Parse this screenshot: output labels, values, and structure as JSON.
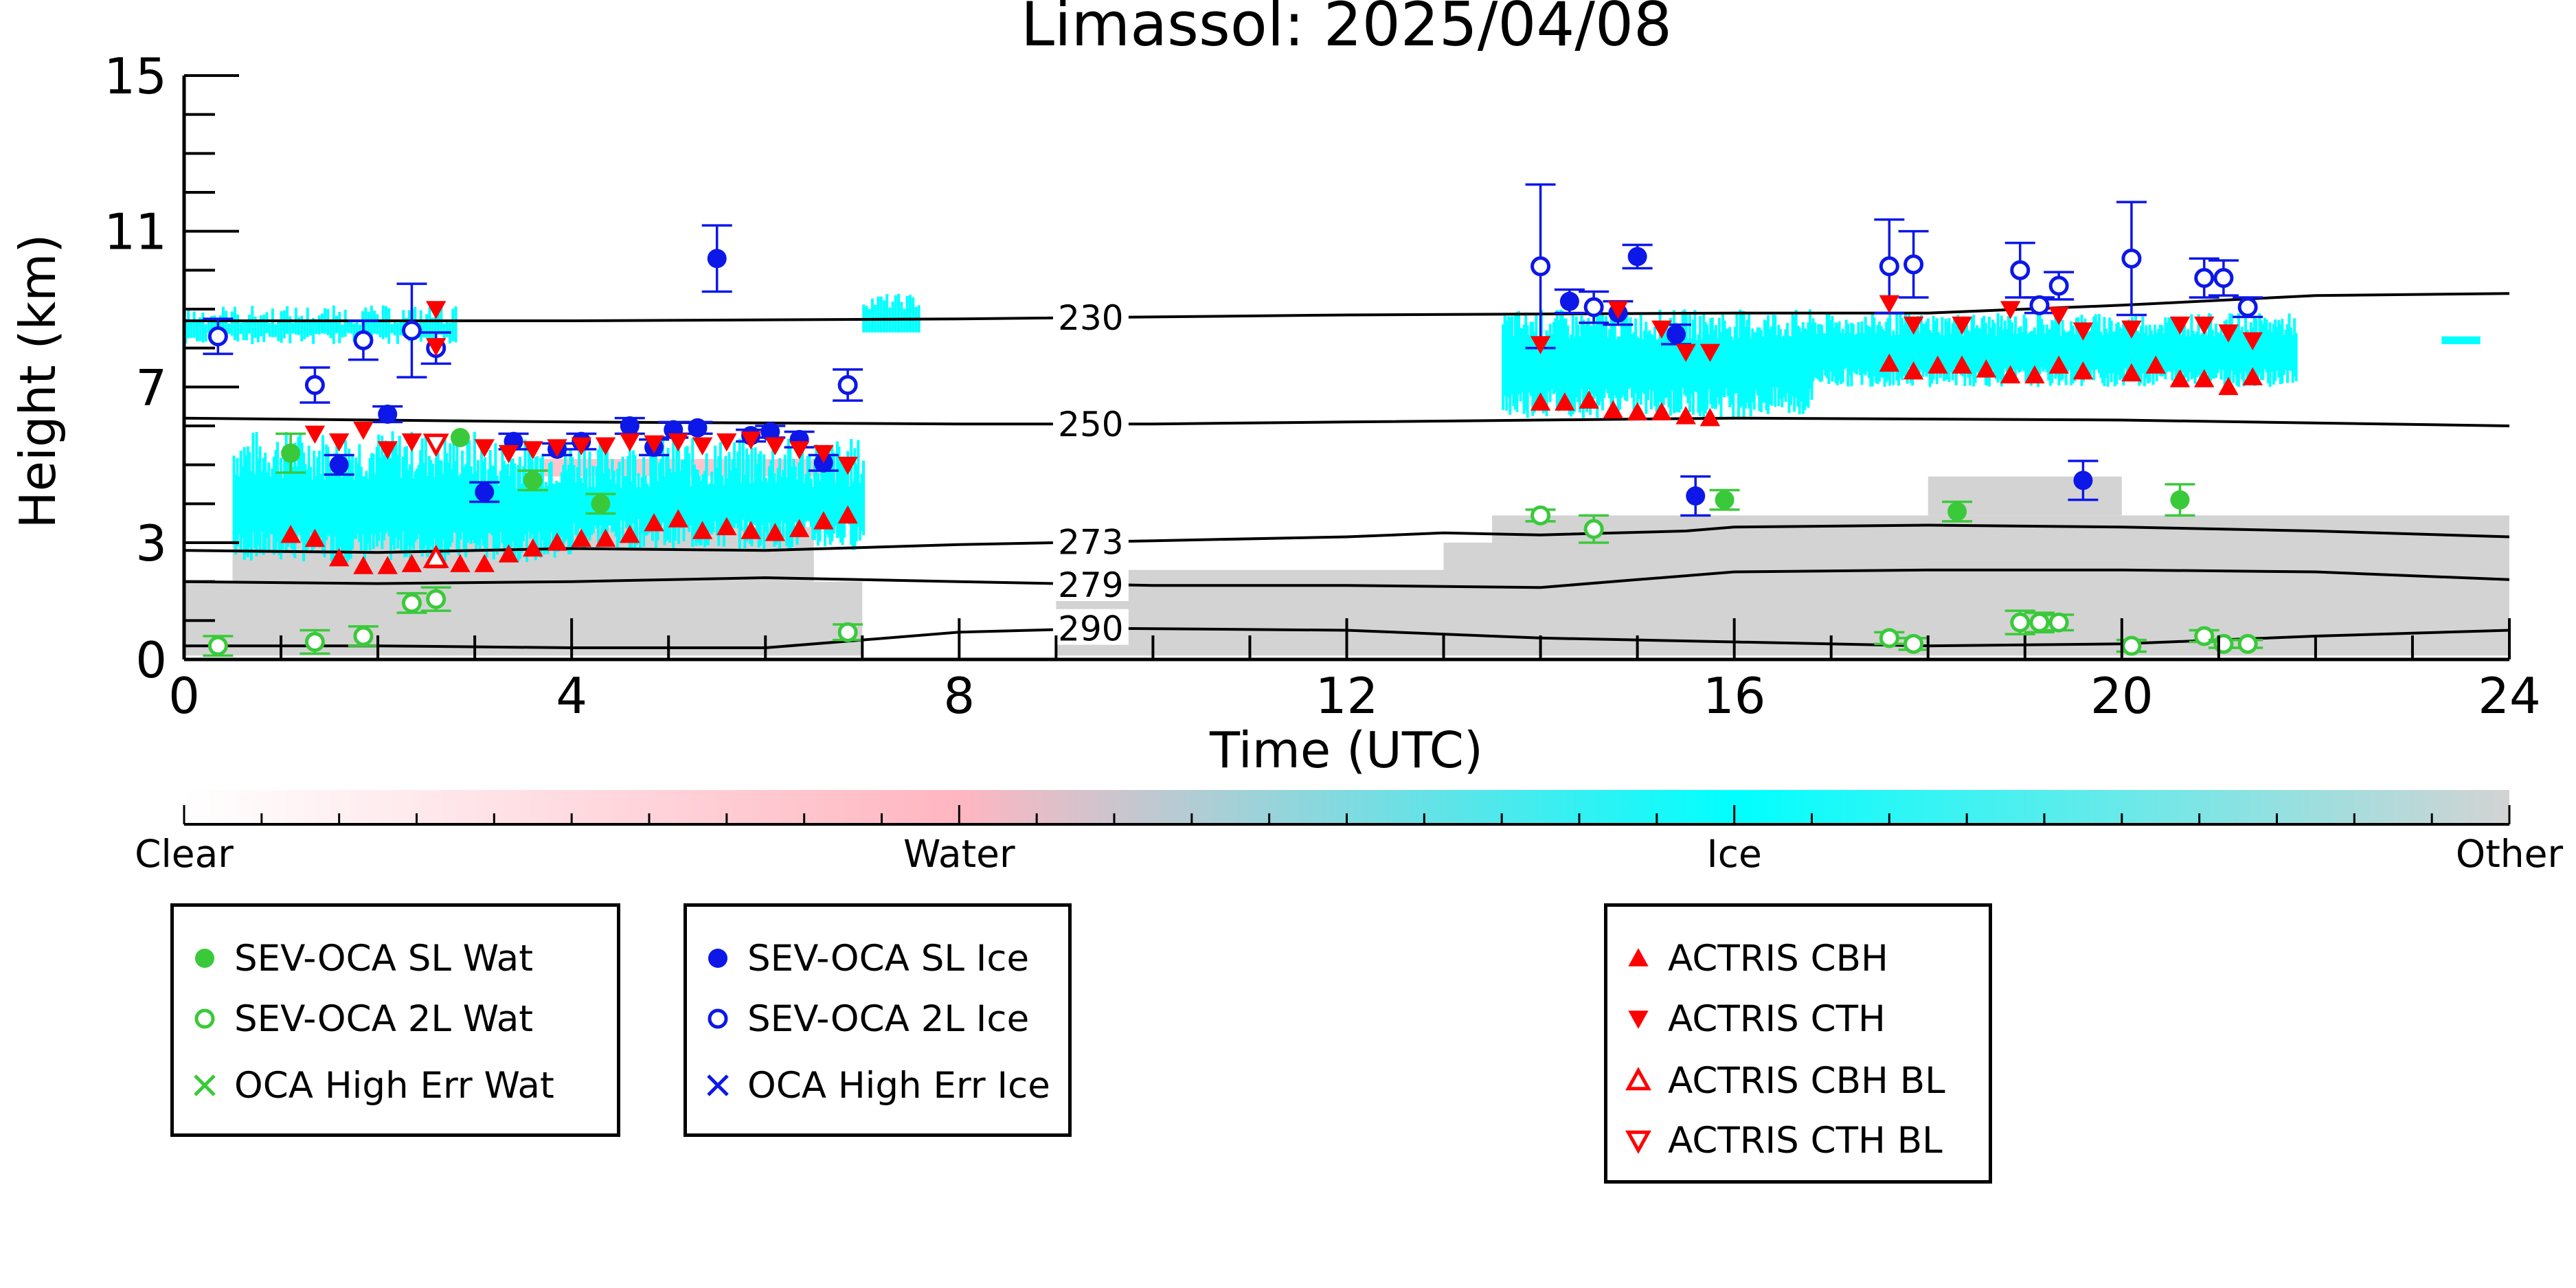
{
  "chart_data": {
    "type": "scatter",
    "title": "Limassol: 2025/04/08",
    "xlabel": "Time (UTC)",
    "ylabel": "Height (km)",
    "xlim": [
      0,
      24
    ],
    "ylim": [
      0,
      15
    ],
    "x_ticks": [
      "0",
      "4",
      "8",
      "12",
      "16",
      "20",
      "24"
    ],
    "y_ticks": [
      "0",
      "3",
      "7",
      "11",
      "15"
    ],
    "colorbar": {
      "labels": [
        "Clear",
        "Water",
        "Ice",
        "Other"
      ],
      "colors": [
        "#ffffff",
        "#ffb6c1",
        "#00ffff",
        "#d3d3d3"
      ]
    },
    "temperature_contours": [
      {
        "label": "230",
        "points": [
          [
            0,
            8.7
          ],
          [
            4,
            8.7
          ],
          [
            8,
            8.75
          ],
          [
            12,
            8.85
          ],
          [
            16,
            8.9
          ],
          [
            18,
            8.9
          ],
          [
            20,
            9.1
          ],
          [
            22,
            9.35
          ],
          [
            24,
            9.4
          ]
        ]
      },
      {
        "label": "250",
        "points": [
          [
            0,
            6.2
          ],
          [
            4,
            6.1
          ],
          [
            8,
            6.05
          ],
          [
            10,
            6.05
          ],
          [
            12,
            6.1
          ],
          [
            16,
            6.2
          ],
          [
            20,
            6.15
          ],
          [
            24,
            6.0
          ]
        ]
      },
      {
        "label": "273",
        "points": [
          [
            0,
            2.8
          ],
          [
            2,
            2.75
          ],
          [
            4,
            2.85
          ],
          [
            6,
            2.8
          ],
          [
            8,
            2.95
          ],
          [
            10,
            3.05
          ],
          [
            12,
            3.15
          ],
          [
            13,
            3.25
          ],
          [
            14,
            3.2
          ],
          [
            15.5,
            3.3
          ],
          [
            16,
            3.4
          ],
          [
            18,
            3.45
          ],
          [
            20,
            3.4
          ],
          [
            22,
            3.3
          ],
          [
            24,
            3.15
          ]
        ]
      },
      {
        "label": "279",
        "points": [
          [
            0,
            2.0
          ],
          [
            2,
            1.95
          ],
          [
            4,
            2.0
          ],
          [
            6,
            2.1
          ],
          [
            8,
            2.0
          ],
          [
            10,
            1.9
          ],
          [
            12,
            1.9
          ],
          [
            14,
            1.85
          ],
          [
            15,
            2.05
          ],
          [
            16,
            2.25
          ],
          [
            18,
            2.3
          ],
          [
            20,
            2.3
          ],
          [
            22,
            2.25
          ],
          [
            24,
            2.05
          ]
        ]
      },
      {
        "label": "290",
        "points": [
          [
            0,
            0.35
          ],
          [
            2,
            0.35
          ],
          [
            4,
            0.3
          ],
          [
            6,
            0.3
          ],
          [
            8,
            0.7
          ],
          [
            9.5,
            0.8
          ],
          [
            12,
            0.75
          ],
          [
            14,
            0.55
          ],
          [
            16,
            0.45
          ],
          [
            18,
            0.35
          ],
          [
            20,
            0.4
          ],
          [
            22,
            0.6
          ],
          [
            24,
            0.75
          ]
        ]
      }
    ],
    "series": [
      {
        "name": "SEV-OCA SL Wat",
        "color": "#3ac93a",
        "marker": "filled-circle",
        "points": [
          [
            1.1,
            5.3,
            0.5
          ],
          [
            2.85,
            5.7,
            0
          ],
          [
            3.6,
            4.6,
            0.25
          ],
          [
            4.3,
            4.0,
            0.25
          ],
          [
            15.9,
            4.1,
            0.25
          ],
          [
            18.3,
            3.8,
            0.25
          ],
          [
            20.6,
            4.1,
            0.4
          ]
        ]
      },
      {
        "name": "SEV-OCA 2L Wat",
        "color": "#3ac93a",
        "marker": "open-circle",
        "points": [
          [
            0.35,
            0.35,
            0.25
          ],
          [
            1.35,
            0.45,
            0.3
          ],
          [
            1.85,
            0.6,
            0.25
          ],
          [
            2.35,
            1.45,
            0.25
          ],
          [
            2.6,
            1.55,
            0.3
          ],
          [
            6.85,
            0.7,
            0.2
          ],
          [
            14.0,
            3.7,
            0.15
          ],
          [
            14.55,
            3.35,
            0.35
          ],
          [
            17.6,
            0.55,
            0.15
          ],
          [
            17.85,
            0.4,
            0.15
          ],
          [
            18.95,
            0.95,
            0.3
          ],
          [
            19.15,
            0.95,
            0.25
          ],
          [
            19.35,
            0.95,
            0.2
          ],
          [
            20.1,
            0.35,
            0.15
          ],
          [
            20.85,
            0.6,
            0.15
          ],
          [
            21.05,
            0.4,
            0.1
          ],
          [
            21.3,
            0.4,
            0.1
          ]
        ]
      },
      {
        "name": "OCA High Err Wat",
        "color": "#3ac93a",
        "marker": "x",
        "points": []
      },
      {
        "name": "SEV-OCA SL Ice",
        "color": "#0c17e8",
        "marker": "filled-circle",
        "points": [
          [
            1.6,
            5.0,
            0.25
          ],
          [
            2.1,
            6.3,
            0.2
          ],
          [
            3.1,
            4.3,
            0.25
          ],
          [
            3.4,
            5.6,
            0.2
          ],
          [
            3.85,
            5.4,
            0.15
          ],
          [
            4.1,
            5.6,
            0.2
          ],
          [
            4.6,
            6.0,
            0.2
          ],
          [
            4.85,
            5.45,
            0.2
          ],
          [
            5.05,
            5.9,
            0.2
          ],
          [
            5.3,
            5.95,
            0.15
          ],
          [
            5.5,
            10.3,
            0.85
          ],
          [
            5.85,
            5.75,
            0.15
          ],
          [
            6.05,
            5.85,
            0.15
          ],
          [
            6.35,
            5.65,
            0.2
          ],
          [
            6.6,
            5.05,
            0.2
          ],
          [
            14.3,
            9.2,
            0.3
          ],
          [
            14.8,
            8.9,
            0.3
          ],
          [
            15.0,
            10.35,
            0.3
          ],
          [
            15.4,
            8.35,
            0.25
          ],
          [
            15.6,
            4.2,
            0.5
          ],
          [
            19.6,
            4.6,
            0.5
          ]
        ]
      },
      {
        "name": "SEV-OCA 2L Ice",
        "color": "#0c17e8",
        "marker": "open-circle",
        "points": [
          [
            0.35,
            8.3,
            0.45
          ],
          [
            1.35,
            7.05,
            0.45
          ],
          [
            1.85,
            8.2,
            0.5
          ],
          [
            2.35,
            8.45,
            1.2
          ],
          [
            2.6,
            8.0,
            0.4
          ],
          [
            6.85,
            7.05,
            0.4
          ],
          [
            14.0,
            10.1,
            2.1
          ],
          [
            14.55,
            9.05,
            0.4
          ],
          [
            17.6,
            10.1,
            1.2
          ],
          [
            17.85,
            10.15,
            0.85
          ],
          [
            18.95,
            10.0,
            0.7
          ],
          [
            19.15,
            9.1,
            0.2
          ],
          [
            19.35,
            9.6,
            0.35
          ],
          [
            20.1,
            10.3,
            1.45
          ],
          [
            20.85,
            9.8,
            0.5
          ],
          [
            21.05,
            9.8,
            0.45
          ],
          [
            21.3,
            9.05,
            0.25
          ]
        ]
      },
      {
        "name": "OCA High Err Ice",
        "color": "#0c17e8",
        "marker": "x",
        "points": []
      },
      {
        "name": "ACTRIS CBH",
        "color": "#ff0000",
        "marker": "triangle-up",
        "points": [
          [
            1.1,
            3.2
          ],
          [
            1.35,
            3.1
          ],
          [
            1.6,
            2.6
          ],
          [
            1.85,
            2.4
          ],
          [
            2.1,
            2.4
          ],
          [
            2.35,
            2.45
          ],
          [
            2.6,
            2.55
          ],
          [
            2.85,
            2.45
          ],
          [
            3.1,
            2.45
          ],
          [
            3.35,
            2.7
          ],
          [
            3.6,
            2.85
          ],
          [
            3.85,
            3.0
          ],
          [
            4.1,
            3.1
          ],
          [
            4.35,
            3.1
          ],
          [
            4.6,
            3.2
          ],
          [
            4.85,
            3.5
          ],
          [
            5.1,
            3.6
          ],
          [
            5.35,
            3.3
          ],
          [
            5.6,
            3.4
          ],
          [
            5.85,
            3.3
          ],
          [
            6.1,
            3.25
          ],
          [
            6.35,
            3.35
          ],
          [
            6.6,
            3.55
          ],
          [
            6.85,
            3.7
          ],
          [
            14.0,
            6.6
          ],
          [
            14.25,
            6.6
          ],
          [
            14.5,
            6.65
          ],
          [
            14.75,
            6.4
          ],
          [
            15.0,
            6.35
          ],
          [
            15.25,
            6.35
          ],
          [
            15.5,
            6.25
          ],
          [
            15.75,
            6.2
          ],
          [
            17.6,
            7.6
          ],
          [
            17.85,
            7.4
          ],
          [
            18.1,
            7.55
          ],
          [
            18.35,
            7.55
          ],
          [
            18.6,
            7.45
          ],
          [
            18.85,
            7.3
          ],
          [
            19.1,
            7.3
          ],
          [
            19.35,
            7.55
          ],
          [
            19.6,
            7.4
          ],
          [
            20.1,
            7.35
          ],
          [
            20.35,
            7.55
          ],
          [
            20.6,
            7.2
          ],
          [
            20.85,
            7.2
          ],
          [
            21.1,
            7.0
          ],
          [
            21.35,
            7.25
          ]
        ]
      },
      {
        "name": "ACTRIS CTH",
        "color": "#ff0000",
        "marker": "triangle-down",
        "points": [
          [
            1.35,
            5.8
          ],
          [
            1.6,
            5.6
          ],
          [
            1.85,
            5.9
          ],
          [
            2.1,
            5.4
          ],
          [
            2.35,
            5.6
          ],
          [
            2.6,
            9.0
          ],
          [
            2.6,
            8.05
          ],
          [
            3.1,
            5.45
          ],
          [
            3.35,
            5.3
          ],
          [
            3.6,
            5.4
          ],
          [
            3.85,
            5.45
          ],
          [
            4.1,
            5.5
          ],
          [
            4.35,
            5.5
          ],
          [
            4.6,
            5.6
          ],
          [
            4.85,
            5.55
          ],
          [
            5.1,
            5.6
          ],
          [
            5.35,
            5.5
          ],
          [
            5.6,
            5.6
          ],
          [
            5.85,
            5.65
          ],
          [
            6.1,
            5.5
          ],
          [
            6.35,
            5.4
          ],
          [
            6.6,
            5.3
          ],
          [
            6.85,
            5.0
          ],
          [
            14.0,
            8.1
          ],
          [
            14.8,
            9.0
          ],
          [
            15.25,
            8.5
          ],
          [
            15.5,
            7.9
          ],
          [
            15.75,
            7.9
          ],
          [
            17.6,
            9.15
          ],
          [
            17.85,
            8.6
          ],
          [
            18.35,
            8.6
          ],
          [
            18.85,
            9.0
          ],
          [
            19.35,
            8.85
          ],
          [
            19.6,
            8.45
          ],
          [
            20.1,
            8.5
          ],
          [
            20.6,
            8.6
          ],
          [
            20.85,
            8.6
          ],
          [
            21.1,
            8.4
          ],
          [
            21.35,
            8.2
          ]
        ]
      },
      {
        "name": "ACTRIS CBH BL",
        "color": "#ff0000",
        "marker": "open-triangle-up",
        "points": [
          [
            2.6,
            2.6
          ]
        ]
      },
      {
        "name": "ACTRIS CTH BL",
        "color": "#ff0000",
        "marker": "open-triangle-down",
        "points": [
          [
            2.6,
            5.55
          ]
        ]
      }
    ],
    "legend_groups": [
      [
        "SEV-OCA SL Wat",
        "SEV-OCA 2L Wat",
        "OCA High Err Wat"
      ],
      [
        "SEV-OCA SL Ice",
        "SEV-OCA 2L Ice",
        "OCA High Err Ice"
      ],
      [
        "ACTRIS CBH",
        "ACTRIS CTH",
        "ACTRIS CBH BL",
        "ACTRIS CTH BL"
      ]
    ],
    "legend_placement": "below-chart"
  }
}
